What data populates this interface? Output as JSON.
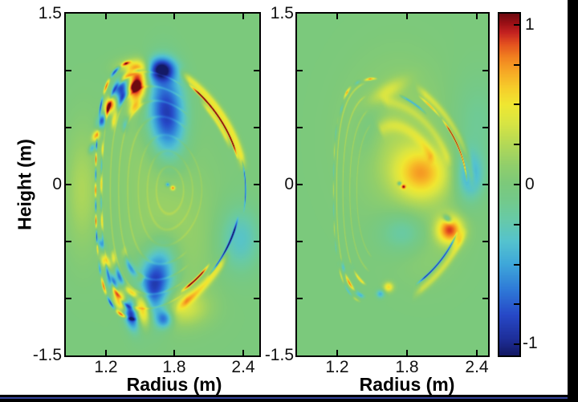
{
  "axis": {
    "radius_label": "Radius (m)",
    "height_label": "Height (m)"
  },
  "colorbar": {
    "labels": [
      "1",
      "0",
      "-1"
    ],
    "label_values": [
      1,
      0,
      -1
    ],
    "tick_values": [
      1,
      0.75,
      0.5,
      0.25,
      0,
      -0.25,
      -0.5,
      -0.75,
      -1
    ],
    "range": [
      -1.07,
      1.07
    ]
  },
  "colormap": {
    "stops": [
      [
        -1.07,
        "#141a66"
      ],
      [
        -0.97,
        "#1e2f9a"
      ],
      [
        -0.82,
        "#2749c8"
      ],
      [
        -0.66,
        "#2f7bd8"
      ],
      [
        -0.5,
        "#3fa8da"
      ],
      [
        -0.36,
        "#55c3cf"
      ],
      [
        -0.22,
        "#68caa8"
      ],
      [
        -0.1,
        "#74ca8b"
      ],
      [
        0.0,
        "#7cc97c"
      ],
      [
        0.12,
        "#92cf6b"
      ],
      [
        0.25,
        "#b4d957"
      ],
      [
        0.38,
        "#d8e544"
      ],
      [
        0.5,
        "#f0e832"
      ],
      [
        0.6,
        "#f6cf2b"
      ],
      [
        0.7,
        "#f7ab26"
      ],
      [
        0.8,
        "#f28020"
      ],
      [
        0.88,
        "#e4511f"
      ],
      [
        0.95,
        "#c52321"
      ],
      [
        1.01,
        "#9b1016"
      ],
      [
        1.07,
        "#6e0a10"
      ]
    ]
  },
  "chart_data": [
    {
      "type": "heatmap",
      "panel": "left",
      "xlabel": "Radius (m)",
      "ylabel": "Height (m)",
      "xlim": [
        0.85,
        2.54
      ],
      "ylim": [
        -1.5,
        1.5
      ],
      "xticks": [
        1.2,
        1.8,
        2.4
      ],
      "xtick_labels": [
        "1.2",
        "1.8",
        "2.4"
      ],
      "yticks": [
        1.5,
        1.0,
        0.5,
        0,
        -0.5,
        -1.0,
        -1.5
      ],
      "ytick_labels": [
        "1.5",
        "0",
        "-1.5"
      ],
      "base": 0,
      "shape": {
        "R0": 1.76,
        "Z0": -0.05,
        "a": 0.66,
        "kappa": 1.75,
        "delta": 0.42
      },
      "arcs": [
        [
          0.95,
          0.012,
          14,
          58,
          1.1,
          0,
          0
        ],
        [
          1.0,
          0.05,
          8,
          64,
          0.5,
          0,
          0
        ],
        [
          0.9,
          0.03,
          20,
          50,
          0.45,
          0,
          0
        ],
        [
          1.0,
          0.009,
          -10,
          14,
          -0.75,
          0,
          0
        ],
        [
          0.94,
          0.012,
          -44,
          -12,
          -1.0,
          0,
          0
        ],
        [
          0.86,
          0.014,
          -64,
          -40,
          1.05,
          0,
          0
        ],
        [
          0.98,
          0.05,
          -66,
          -28,
          0.45,
          0,
          0
        ],
        [
          0.985,
          0.012,
          95,
          152,
          0.85,
          14,
          0.5
        ],
        [
          0.985,
          0.01,
          152,
          212,
          0.8,
          26,
          0.0
        ],
        [
          0.985,
          0.012,
          212,
          268,
          0.85,
          14,
          0.9
        ],
        [
          0.91,
          0.018,
          88,
          150,
          0.6,
          12,
          2.2
        ],
        [
          0.91,
          0.013,
          153,
          210,
          0.45,
          20,
          1.0
        ],
        [
          0.91,
          0.018,
          212,
          266,
          0.7,
          12,
          0.8
        ],
        [
          0.82,
          0.024,
          94,
          148,
          0.5,
          10,
          0.6
        ],
        [
          0.82,
          0.024,
          213,
          262,
          0.65,
          10,
          0.2
        ],
        [
          0.7,
          0.03,
          100,
          142,
          0.4,
          8,
          2.6
        ],
        [
          0.7,
          0.03,
          218,
          258,
          0.55,
          8,
          1.5
        ],
        [
          0.18,
          0.012,
          -180,
          180,
          0.1,
          0,
          0
        ],
        [
          0.3,
          0.012,
          -180,
          180,
          0.09,
          0,
          0
        ],
        [
          0.42,
          0.011,
          -180,
          180,
          0.09,
          0,
          0
        ],
        [
          0.56,
          0.011,
          55,
          305,
          0.12,
          0,
          0
        ],
        [
          0.68,
          0.01,
          55,
          305,
          0.14,
          0,
          0
        ],
        [
          0.79,
          0.01,
          60,
          300,
          0.15,
          0,
          0
        ],
        [
          0.9,
          0.009,
          60,
          300,
          0.15,
          0,
          0
        ]
      ],
      "blobs": [
        [
          1.47,
          0.87,
          0.06,
          0.11,
          -8,
          1.1
        ],
        [
          1.45,
          1.03,
          0.1,
          0.05,
          0,
          0.45
        ],
        [
          1.68,
          1.01,
          0.085,
          0.07,
          0,
          -1.0
        ],
        [
          1.73,
          0.62,
          0.11,
          0.26,
          3,
          -0.95
        ],
        [
          1.34,
          0.84,
          0.045,
          0.075,
          -15,
          -0.95
        ],
        [
          1.24,
          0.7,
          0.034,
          0.055,
          -18,
          0.9
        ],
        [
          1.165,
          0.56,
          0.027,
          0.045,
          -20,
          -0.8
        ],
        [
          1.115,
          0.43,
          0.021,
          0.036,
          -22,
          0.65
        ],
        [
          1.08,
          0.32,
          0.017,
          0.03,
          -24,
          -0.5
        ],
        [
          1.74,
          0.0,
          0.012,
          0.012,
          0,
          -0.6
        ],
        [
          1.785,
          -0.03,
          0.013,
          0.013,
          0,
          0.7
        ],
        [
          0.99,
          -0.05,
          0.1,
          0.36,
          0,
          0.22
        ],
        [
          1.63,
          -0.87,
          0.105,
          0.22,
          -12,
          -1.0
        ],
        [
          1.52,
          -1.09,
          0.05,
          0.11,
          8,
          1.0
        ],
        [
          1.42,
          -1.14,
          0.04,
          0.09,
          14,
          -0.9
        ],
        [
          1.33,
          -1.02,
          0.036,
          0.065,
          18,
          0.85
        ],
        [
          1.26,
          -0.86,
          0.03,
          0.05,
          20,
          -0.8
        ],
        [
          1.2,
          -0.68,
          0.025,
          0.042,
          22,
          0.7
        ],
        [
          1.16,
          -0.52,
          0.02,
          0.036,
          24,
          -0.55
        ],
        [
          1.71,
          -1.18,
          0.05,
          0.055,
          0,
          -0.65
        ],
        [
          1.88,
          -1.08,
          0.15,
          0.11,
          0,
          0.35
        ],
        [
          2.37,
          -0.48,
          0.13,
          0.2,
          0,
          -0.35
        ],
        [
          1.78,
          -0.45,
          0.28,
          0.4,
          0,
          0.16
        ],
        [
          1.6,
          0.3,
          0.24,
          0.35,
          0,
          0.1
        ]
      ]
    },
    {
      "type": "heatmap",
      "panel": "right",
      "xlabel": "Radius (m)",
      "ylabel": "",
      "xlim": [
        0.85,
        2.5
      ],
      "ylim": [
        -1.5,
        1.5
      ],
      "xticks": [
        1.2,
        1.8,
        2.4
      ],
      "xtick_labels": [
        "1.2",
        "1.8",
        "2.4"
      ],
      "yticks": [
        1.5,
        1.0,
        0.5,
        0,
        -0.5,
        -1.0,
        -1.5
      ],
      "ytick_labels": [
        "1.5",
        "0",
        "-1.5"
      ],
      "base": 0,
      "shape": {
        "R0": 1.75,
        "Z0": -0.05,
        "a": 0.6,
        "kappa": 1.72,
        "delta": 0.42
      },
      "arcs": [
        [
          0.95,
          0.011,
          4,
          40,
          1.05,
          0,
          0
        ],
        [
          0.95,
          0.012,
          40,
          58,
          0.55,
          0,
          0
        ],
        [
          1.02,
          0.05,
          0,
          60,
          0.3,
          0,
          0
        ],
        [
          0.84,
          0.012,
          50,
          74,
          -0.6,
          0,
          0
        ],
        [
          0.95,
          0.01,
          88,
          102,
          0.8,
          0,
          0
        ],
        [
          0.97,
          0.01,
          114,
          128,
          0.75,
          0,
          0
        ],
        [
          0.96,
          0.01,
          103,
          112,
          -0.5,
          0,
          0
        ],
        [
          0.96,
          0.01,
          129,
          139,
          -0.45,
          0,
          0
        ],
        [
          0.93,
          0.013,
          -60,
          -22,
          -1.0,
          0,
          0
        ],
        [
          1.02,
          0.05,
          -62,
          -18,
          0.3,
          0,
          0
        ],
        [
          0.93,
          0.008,
          100,
          260,
          0.22,
          0,
          0
        ],
        [
          0.84,
          0.008,
          106,
          256,
          0.18,
          0,
          0
        ],
        [
          0.74,
          0.008,
          112,
          250,
          0.15,
          0,
          0
        ],
        [
          0.64,
          0.008,
          118,
          244,
          0.12,
          0,
          0
        ],
        [
          0.55,
          0.06,
          25,
          115,
          0.22,
          0,
          0
        ],
        [
          0.75,
          0.05,
          15,
          95,
          0.18,
          0,
          0
        ],
        [
          0.93,
          0.014,
          218,
          262,
          0.6,
          12,
          0.4
        ],
        [
          0.84,
          0.012,
          226,
          256,
          0.4,
          10,
          1.3
        ],
        [
          0.975,
          0.008,
          140,
          218,
          0.25,
          18,
          0
        ],
        [
          0.975,
          0.009,
          218,
          258,
          0.35,
          14,
          0.7
        ]
      ],
      "blobs": [
        [
          1.93,
          0.1,
          0.17,
          0.16,
          0,
          0.62
        ],
        [
          2.34,
          0.08,
          0.085,
          0.15,
          0,
          -0.5
        ],
        [
          2.17,
          -0.4,
          0.08,
          0.085,
          0,
          0.85
        ],
        [
          2.15,
          -0.3,
          0.03,
          0.02,
          -40,
          -0.55
        ],
        [
          1.78,
          -0.42,
          0.15,
          0.13,
          0,
          -0.3
        ],
        [
          2.4,
          0.55,
          0.15,
          0.28,
          0,
          -0.15
        ],
        [
          1.72,
          0.4,
          0.28,
          0.42,
          0,
          0.18
        ],
        [
          1.95,
          -0.45,
          0.2,
          0.25,
          0,
          0.12
        ],
        [
          1.63,
          0.82,
          0.13,
          0.05,
          32,
          0.3
        ],
        [
          1.64,
          -0.9,
          0.03,
          0.03,
          0,
          0.55
        ],
        [
          1.57,
          -0.96,
          0.025,
          0.025,
          0,
          -0.45
        ],
        [
          1.77,
          -0.02,
          0.013,
          0.013,
          0,
          0.65
        ],
        [
          1.735,
          0.01,
          0.012,
          0.012,
          0,
          -0.5
        ],
        [
          1.48,
          0.5,
          0.08,
          0.2,
          -10,
          -0.12
        ]
      ]
    }
  ]
}
